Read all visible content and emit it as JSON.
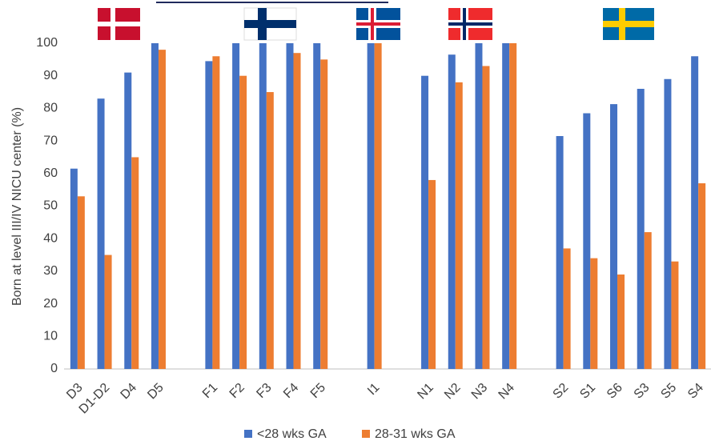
{
  "chart_data": {
    "type": "bar",
    "y_label": "Born at level III/IV NICU center (%)",
    "categories": [
      "D3",
      "D1-D2",
      "D4",
      "D5",
      null,
      "F1",
      "F2",
      "F3",
      "F4",
      "F5",
      null,
      "I1",
      null,
      "N1",
      "N2",
      "N3",
      "N4",
      null,
      "S2",
      "S1",
      "S6",
      "S3",
      "S5",
      "S4"
    ],
    "series": [
      {
        "name": "<28 wks GA",
        "color": "#4472c4",
        "values": [
          61.5,
          83,
          91,
          100,
          null,
          94.5,
          100,
          100,
          100,
          100,
          null,
          100,
          null,
          90,
          96.5,
          100,
          100,
          null,
          71.5,
          78.5,
          81.3,
          86,
          89,
          96
        ]
      },
      {
        "name": "28-31 wks GA",
        "color": "#ed7d31",
        "values": [
          53,
          35,
          65,
          98,
          null,
          96,
          90,
          85,
          97,
          95,
          null,
          100,
          null,
          58,
          88,
          93,
          100,
          null,
          37,
          34,
          29,
          42,
          33,
          57
        ]
      }
    ],
    "ylim": [
      0,
      100
    ],
    "yticks": [
      0,
      10,
      20,
      30,
      40,
      50,
      60,
      70,
      80,
      90,
      100
    ],
    "grid": false,
    "legend": "bottom"
  }
}
